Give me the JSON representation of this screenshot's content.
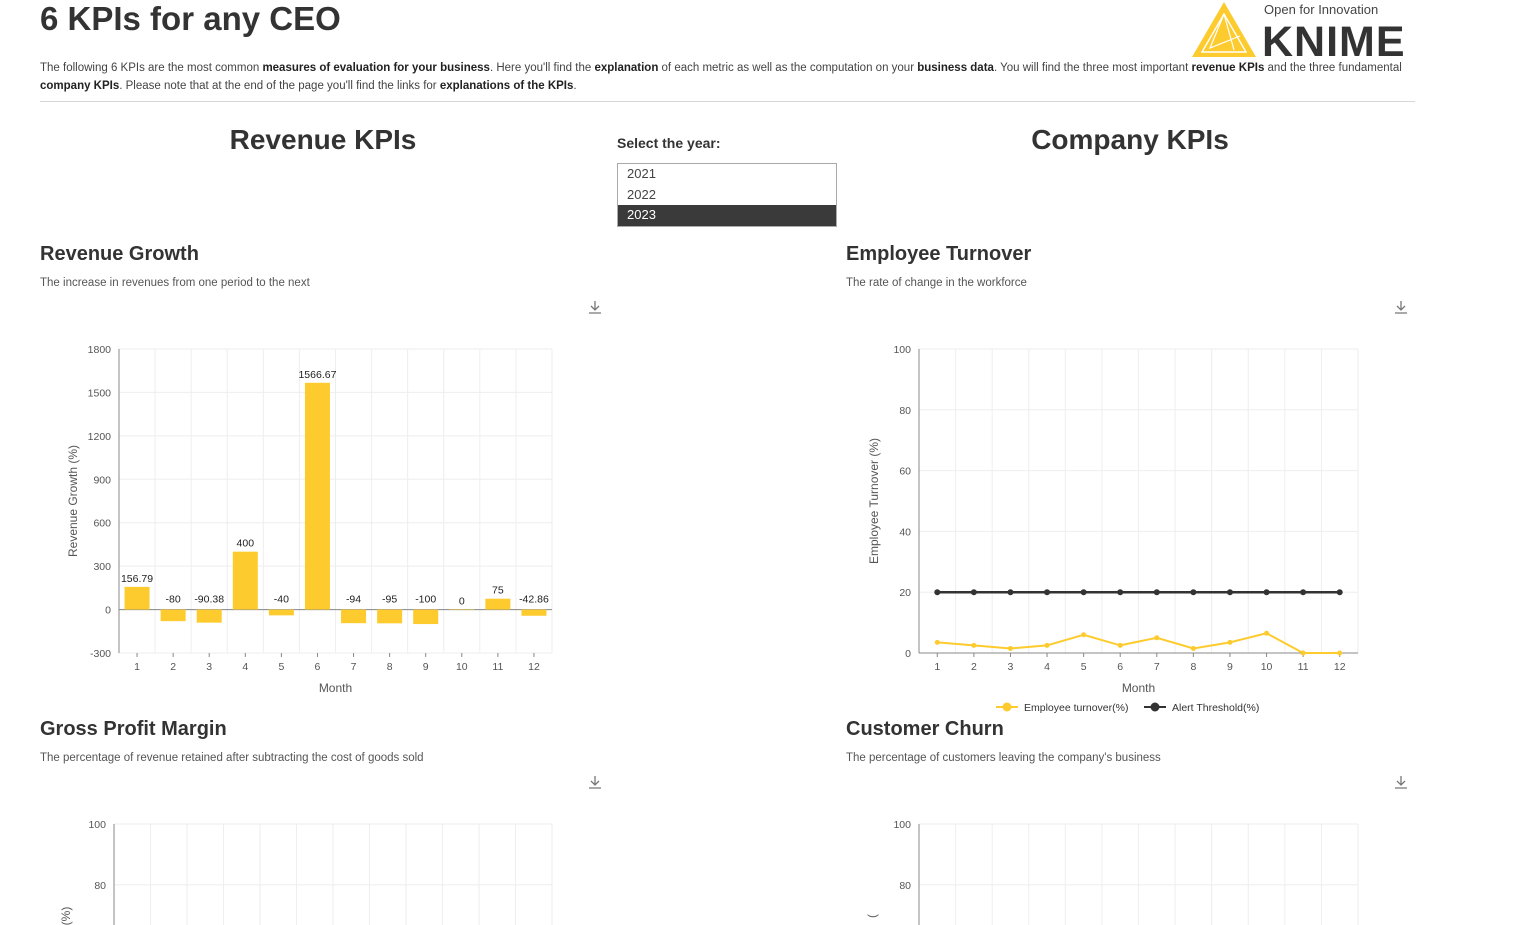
{
  "header": {
    "title": "6 KPIs for any CEO",
    "logo_tagline": "Open for Innovation",
    "logo_text": "KNIME"
  },
  "intro": [
    {
      "text": "The following 6 KPIs are the most common ",
      "bold": false
    },
    {
      "text": "measures of evaluation for your business",
      "bold": true
    },
    {
      "text": ". Here you'll find the ",
      "bold": false
    },
    {
      "text": "explanation",
      "bold": true
    },
    {
      "text": " of each metric as well as the computation on your ",
      "bold": false
    },
    {
      "text": "business data",
      "bold": true
    },
    {
      "text": ". You will find the three most important ",
      "bold": false
    },
    {
      "text": "revenue KPIs",
      "bold": true
    },
    {
      "text": " and the three fundamental ",
      "bold": false
    },
    {
      "text": "company KPIs",
      "bold": true
    },
    {
      "text": ". Please note that at the end of the page you'll find the links for ",
      "bold": false
    },
    {
      "text": "explanations of the KPIs",
      "bold": true
    },
    {
      "text": ".",
      "bold": false
    }
  ],
  "sections": {
    "revenue": "Revenue KPIs",
    "company": "Company KPIs"
  },
  "year_selector": {
    "label": "Select the year:",
    "options": [
      "2021",
      "2022",
      "2023"
    ],
    "selected": "2023"
  },
  "colors": {
    "bar": "#FECB2E",
    "turnover_line": "#FECB2E",
    "threshold_line": "#333333",
    "grid": "#eeeeee",
    "axis": "#888888"
  },
  "charts": {
    "revenue_growth": {
      "title": "Revenue Growth",
      "subtitle": "The increase in revenues from one period to the next"
    },
    "employee_turnover": {
      "title": "Employee Turnover",
      "subtitle": "The rate of change in the workforce"
    },
    "gross_profit_margin": {
      "title": "Gross Profit Margin",
      "subtitle": "The percentage of revenue retained after subtracting the cost of goods sold"
    },
    "customer_churn": {
      "title": "Customer Churn",
      "subtitle": "The percentage of customers leaving the company's business"
    }
  },
  "chart_data": [
    {
      "id": "revenue_growth",
      "type": "bar",
      "categories": [
        "1",
        "2",
        "3",
        "4",
        "5",
        "6",
        "7",
        "8",
        "9",
        "10",
        "11",
        "12"
      ],
      "values": [
        156.79,
        -80,
        -90.38,
        400,
        -40,
        1566.67,
        -94,
        -95,
        -100,
        0,
        75,
        -42.86
      ],
      "labels": [
        "156.79",
        "-80",
        "-90.38",
        "400",
        "-40",
        "1566.67",
        "-94",
        "-95",
        "-100",
        "0",
        "75",
        "-42.86"
      ],
      "xlabel": "Month",
      "ylabel": "Revenue Growth (%)",
      "ylim": [
        -300,
        1800
      ],
      "yticks": [
        -300,
        0,
        300,
        600,
        900,
        1200,
        1500,
        1800
      ],
      "grid": true
    },
    {
      "id": "employee_turnover",
      "type": "line",
      "x": [
        "1",
        "2",
        "3",
        "4",
        "5",
        "6",
        "7",
        "8",
        "9",
        "10",
        "11",
        "12"
      ],
      "series": [
        {
          "name": "Employee turnover(%)",
          "values": [
            3.5,
            2.5,
            1.5,
            2.5,
            6,
            2.5,
            5,
            1.5,
            3.5,
            6.5,
            0,
            0
          ]
        },
        {
          "name": "Alert Threshold(%)",
          "values": [
            20,
            20,
            20,
            20,
            20,
            20,
            20,
            20,
            20,
            20,
            20,
            20
          ]
        }
      ],
      "xlabel": "Month",
      "ylabel": "Employee Turnover (%)",
      "ylim": [
        0,
        100
      ],
      "yticks": [
        0,
        20,
        40,
        60,
        80,
        100
      ],
      "grid": true,
      "legend": "bottom"
    },
    {
      "id": "gross_profit_margin",
      "type": "line",
      "ylabel": "(%)",
      "ylim": [
        0,
        100
      ],
      "visible_yticks": [
        80,
        100
      ],
      "grid": true
    },
    {
      "id": "customer_churn",
      "type": "line",
      "ylabel": "(",
      "ylim": [
        0,
        100
      ],
      "visible_yticks": [
        80,
        100
      ],
      "grid": true
    }
  ]
}
